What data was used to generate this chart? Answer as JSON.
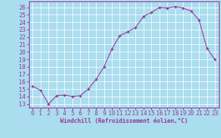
{
  "x": [
    0,
    1,
    2,
    3,
    4,
    5,
    6,
    7,
    8,
    9,
    10,
    11,
    12,
    13,
    14,
    15,
    16,
    17,
    18,
    19,
    20,
    21,
    22,
    23
  ],
  "y": [
    15.4,
    14.8,
    13.0,
    14.1,
    14.2,
    14.0,
    14.1,
    15.0,
    16.3,
    18.0,
    20.4,
    22.2,
    22.7,
    23.3,
    24.8,
    25.3,
    26.0,
    25.9,
    26.1,
    25.9,
    25.5,
    24.3,
    20.5,
    19.0
  ],
  "line_color": "#993399",
  "marker": "+",
  "bg_color": "#aaddee",
  "grid_color": "#ffffff",
  "xlabel": "Windchill (Refroidissement éolien,°C)",
  "yticks": [
    13,
    14,
    15,
    16,
    17,
    18,
    19,
    20,
    21,
    22,
    23,
    24,
    25,
    26
  ],
  "xlim": [
    -0.5,
    23.5
  ],
  "ylim": [
    12.5,
    26.8
  ],
  "xlabel_color": "#993399",
  "xlabel_fontsize": 6.0,
  "tick_fontsize": 6.0,
  "tick_color": "#993399",
  "spine_color": "#993399"
}
